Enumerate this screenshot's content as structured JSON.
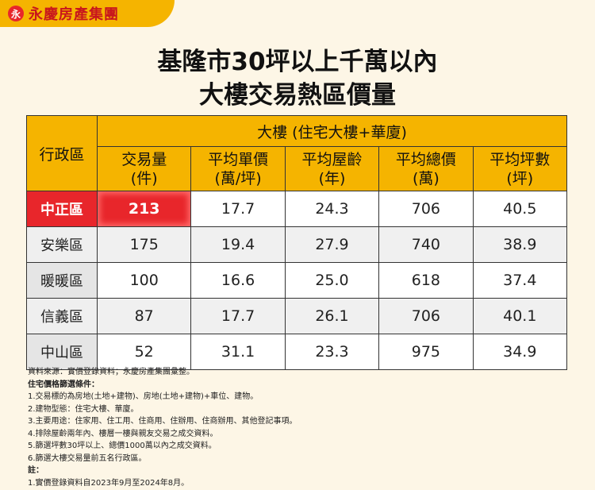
{
  "brand": {
    "logo_glyph": "永",
    "name": "永慶房產集團"
  },
  "title": {
    "line1": "基隆市30坪以上千萬以內",
    "line2": "大樓交易熱區價量"
  },
  "table": {
    "district_header": "行政區",
    "group_header": "大樓 (住宅大樓+華廈)",
    "columns": [
      {
        "l1": "交易量",
        "l2": "(件)"
      },
      {
        "l1": "平均單價",
        "l2": "(萬/坪)"
      },
      {
        "l1": "平均屋齡",
        "l2": "(年)"
      },
      {
        "l1": "平均總價",
        "l2": "(萬)"
      },
      {
        "l1": "平均坪數",
        "l2": "(坪)"
      }
    ],
    "rows": [
      {
        "district": "中正區",
        "values": [
          "213",
          "17.7",
          "24.3",
          "706",
          "40.5"
        ]
      },
      {
        "district": "安樂區",
        "values": [
          "175",
          "19.4",
          "27.9",
          "740",
          "38.9"
        ]
      },
      {
        "district": "暖暖區",
        "values": [
          "100",
          "16.6",
          "25.0",
          "618",
          "37.4"
        ]
      },
      {
        "district": "信義區",
        "values": [
          "87",
          "17.7",
          "26.1",
          "706",
          "40.1"
        ]
      },
      {
        "district": "中山區",
        "values": [
          "52",
          "31.1",
          "23.3",
          "975",
          "34.9"
        ]
      }
    ],
    "highlight_color": "#e8262b",
    "header_color": "#f5b400"
  },
  "notes": {
    "source": "資料來源：實價登錄資料；永慶房產集團彙整。",
    "criteria_title": "住宅價格篩選條件：",
    "criteria": [
      "1.交易標的為房地(土地+建物)、房地(土地+建物)+車位、建物。",
      "2.建物型態：住宅大樓、華廈。",
      "3.主要用途：住家用、住工用、住商用、住辦用、住商辦用、其他登記事項。",
      "4.排除屋齡兩年內、樓層一樓與親友交易之成交資料。",
      "5.篩選坪數30坪以上、總價1000萬以內之成交資料。",
      "6.篩選大樓交易量前五名行政區。"
    ],
    "remark_title": "註：",
    "remarks": [
      "1.實價登錄資料自2023年9月至2024年8月。"
    ]
  }
}
